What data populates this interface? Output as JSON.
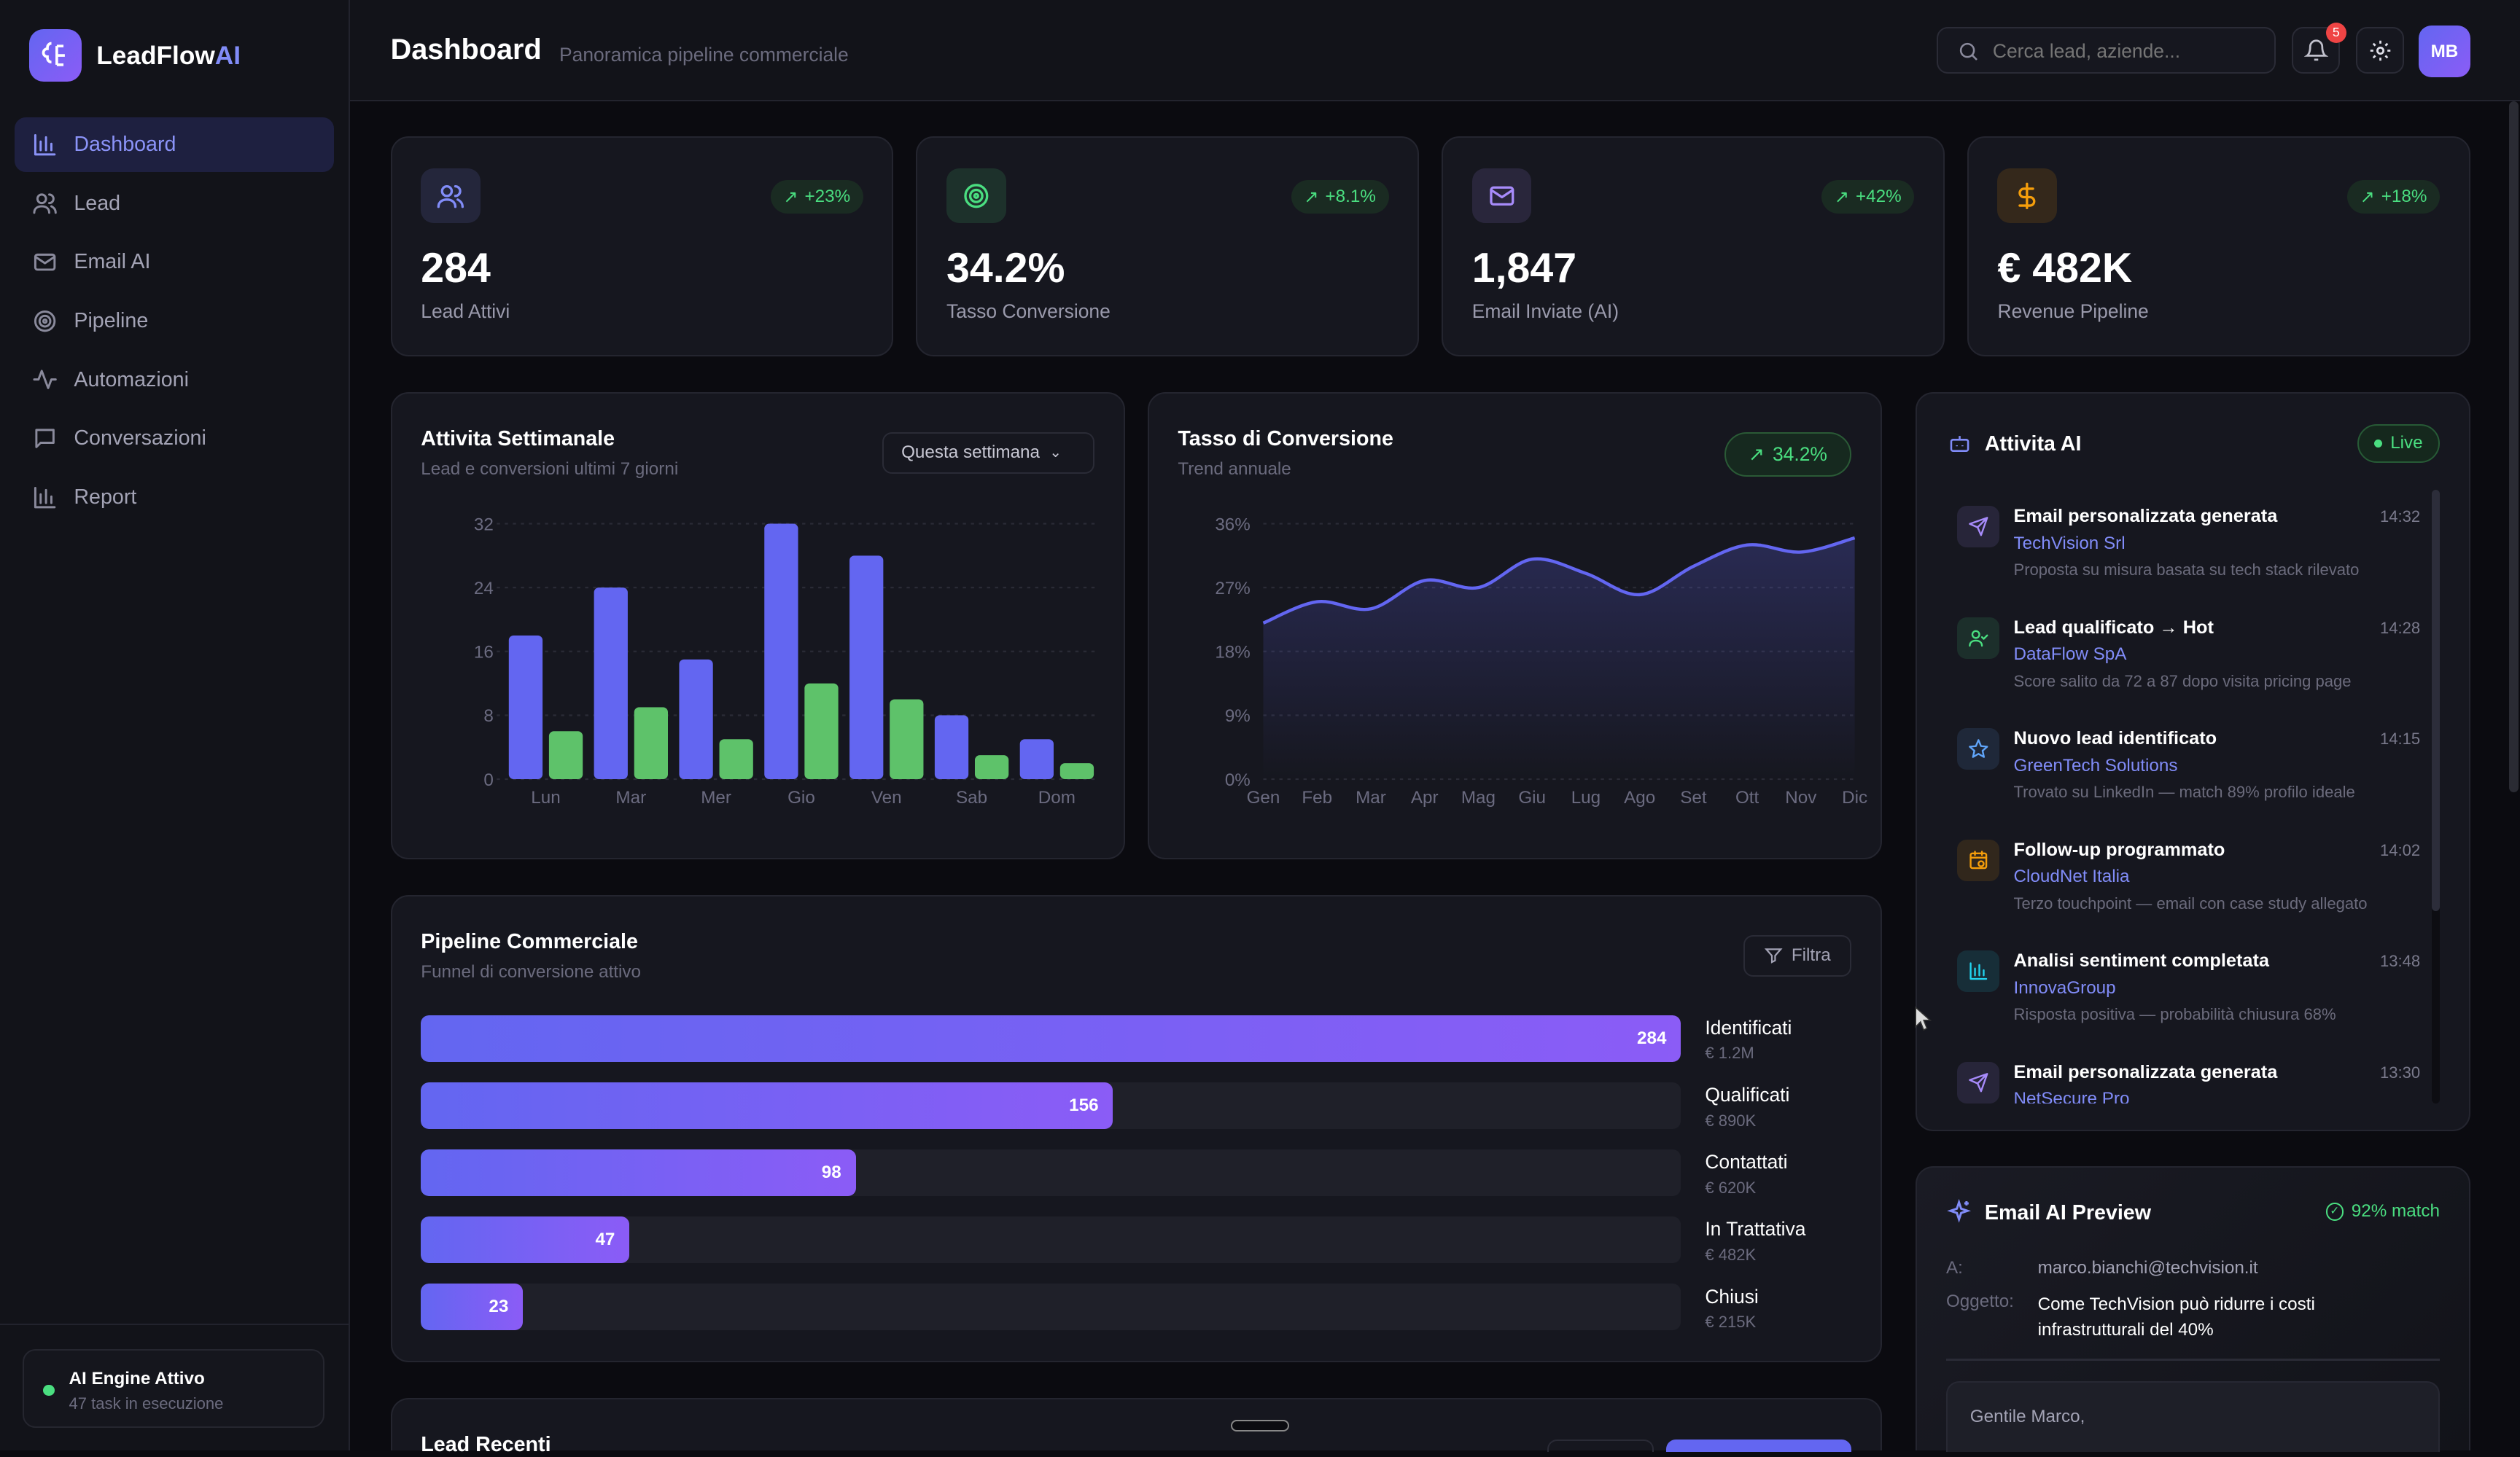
{
  "app": {
    "brand_main": "LeadFlow",
    "brand_accent": "AI"
  },
  "sidebar": {
    "items": [
      {
        "label": "Dashboard",
        "icon": "bar-chart-icon",
        "active": true
      },
      {
        "label": "Lead",
        "icon": "users-icon"
      },
      {
        "label": "Email AI",
        "icon": "mail-icon"
      },
      {
        "label": "Pipeline",
        "icon": "target-icon"
      },
      {
        "label": "Automazioni",
        "icon": "activity-icon"
      },
      {
        "label": "Conversazioni",
        "icon": "message-icon"
      },
      {
        "label": "Report",
        "icon": "bar-chart-icon"
      }
    ],
    "engine": {
      "title": "AI Engine Attivo",
      "subtitle": "47 task in esecuzione"
    }
  },
  "header": {
    "title": "Dashboard",
    "subtitle": "Panoramica pipeline commerciale",
    "search_placeholder": "Cerca lead, aziende...",
    "notifications": "5",
    "avatar": "MB"
  },
  "stats": [
    {
      "value": "284",
      "label": "Lead Attivi",
      "change": "+23%",
      "icon": "users-icon",
      "color": "#818cf8"
    },
    {
      "value": "34.2%",
      "label": "Tasso Conversione",
      "change": "+8.1%",
      "icon": "target-icon",
      "color": "#4ade80"
    },
    {
      "value": "1,847",
      "label": "Email Inviate (AI)",
      "change": "+42%",
      "icon": "mail-icon",
      "color": "#a78bfa"
    },
    {
      "value": "€ 482K",
      "label": "Revenue Pipeline",
      "change": "+18%",
      "icon": "dollar-icon",
      "color": "#f59e0b"
    }
  ],
  "weekly": {
    "title": "Attivita Settimanale",
    "subtitle": "Lead e conversioni ultimi 7 giorni",
    "filter": "Questa settimana"
  },
  "conversion": {
    "title": "Tasso di Conversione",
    "subtitle": "Trend annuale",
    "badge": "34.2%"
  },
  "chart_data": [
    {
      "type": "bar",
      "categories": [
        "Lun",
        "Mar",
        "Mer",
        "Gio",
        "Ven",
        "Sab",
        "Dom"
      ],
      "series": [
        {
          "values": [
            18,
            24,
            15,
            32,
            28,
            8,
            5
          ],
          "color": "#6366f1"
        },
        {
          "values": [
            6,
            9,
            5,
            12,
            10,
            3,
            2
          ],
          "color": "#5ec26a"
        }
      ],
      "yticks": [
        "0",
        "8",
        "16",
        "24",
        "32"
      ],
      "ylim": [
        0,
        32
      ],
      "grid": true
    },
    {
      "type": "area",
      "categories": [
        "Gen",
        "Feb",
        "Mar",
        "Apr",
        "Mag",
        "Giu",
        "Lug",
        "Ago",
        "Set",
        "Ott",
        "Nov",
        "Dic"
      ],
      "values": [
        22,
        25,
        24,
        28,
        27,
        31,
        29,
        26,
        30,
        33,
        32,
        34
      ],
      "color": "#6366f1",
      "yticks": [
        "0%",
        "9%",
        "18%",
        "27%",
        "36%"
      ],
      "ylim": [
        0,
        36
      ],
      "grid": true
    }
  ],
  "pipeline": {
    "title": "Pipeline Commerciale",
    "subtitle": "Funnel di conversione attivo",
    "filter": "Filtra",
    "max": 284,
    "stages": [
      {
        "name": "Identificati",
        "count": 284,
        "count_label": "284",
        "value": "€ 1.2M"
      },
      {
        "name": "Qualificati",
        "count": 156,
        "count_label": "156",
        "value": "€ 890K"
      },
      {
        "name": "Contattati",
        "count": 98,
        "count_label": "98",
        "value": "€ 620K"
      },
      {
        "name": "In Trattativa",
        "count": 47,
        "count_label": "47",
        "value": "€ 482K"
      },
      {
        "name": "Chiusi",
        "count": 23,
        "count_label": "23",
        "value": "€ 215K"
      }
    ]
  },
  "activity": {
    "title": "Attivita AI",
    "live": "Live",
    "items": [
      {
        "title": "Email personalizzata generata",
        "company": "TechVision Srl",
        "desc": "Proposta su misura basata su tech stack rilevato",
        "time": "14:32",
        "icon": "send-icon",
        "color": "#a78bfa"
      },
      {
        "title": "Lead qualificato → Hot",
        "company": "DataFlow SpA",
        "desc": "Score salito da 72 a 87 dopo visita pricing page",
        "time": "14:28",
        "icon": "user-check-icon",
        "color": "#4ade80"
      },
      {
        "title": "Nuovo lead identificato",
        "company": "GreenTech Solutions",
        "desc": "Trovato su LinkedIn — match 89% profilo ideale",
        "time": "14:15",
        "icon": "star-icon",
        "color": "#60a5fa"
      },
      {
        "title": "Follow-up programmato",
        "company": "CloudNet Italia",
        "desc": "Terzo touchpoint — email con case study allegato",
        "time": "14:02",
        "icon": "calendar-clock-icon",
        "color": "#f59e0b"
      },
      {
        "title": "Analisi sentiment completata",
        "company": "InnovaGroup",
        "desc": "Risposta positiva — probabilità chiusura 68%",
        "time": "13:48",
        "icon": "bar-chart-icon",
        "color": "#22d3ee"
      },
      {
        "title": "Email personalizzata generata",
        "company": "NetSecure Pro",
        "desc": "",
        "time": "13:30",
        "icon": "send-icon",
        "color": "#a78bfa"
      }
    ]
  },
  "email_preview": {
    "title": "Email AI Preview",
    "match": "92% match",
    "to_label": "A:",
    "to": "marco.bianchi@techvision.it",
    "subject_label": "Oggetto:",
    "subject": "Come TechVision può ridurre i costi infrastrutturali del 40%",
    "body": "Gentile Marco,"
  },
  "recent": {
    "title": "Lead Recenti"
  }
}
